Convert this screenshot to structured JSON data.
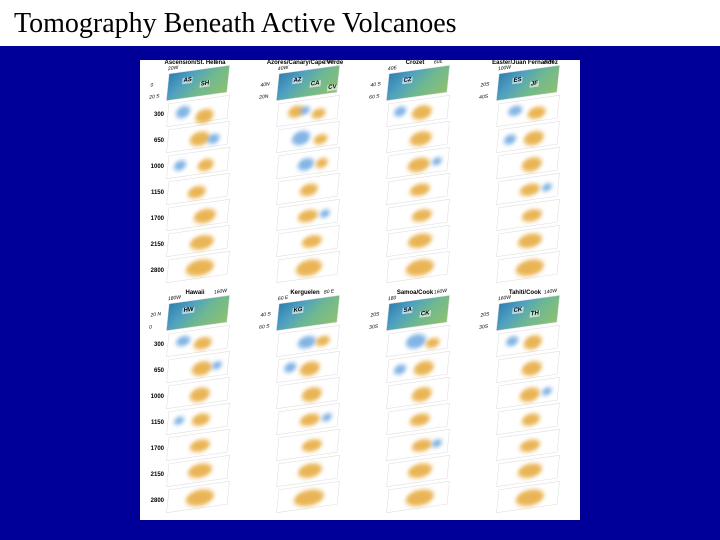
{
  "title": "Tomography Beneath Active Volcanoes",
  "slide_background": "#000099",
  "figure_background": "#ffffff",
  "depths": [
    "300",
    "650",
    "1000",
    "1150",
    "1700",
    "2150",
    "2800"
  ],
  "color_slow": "#e6a838",
  "color_fast": "#6ea8e0",
  "groups": {
    "top": [
      {
        "header": "Ascension/St. Helena",
        "surface_axes": [
          "20W",
          "0",
          "0",
          "20 S"
        ],
        "surface_markers": [
          "AS",
          "SH"
        ],
        "slices": [
          {
            "blobs": [
              [
                "#e6a838",
                28,
                10,
                18,
                14
              ],
              [
                "#6ea8e0",
                8,
                4,
                14,
                12
              ]
            ]
          },
          {
            "blobs": [
              [
                "#e6a838",
                22,
                6,
                20,
                14
              ],
              [
                "#6ea8e0",
                40,
                10,
                12,
                10
              ]
            ]
          },
          {
            "blobs": [
              [
                "#e6a838",
                30,
                8,
                16,
                12
              ],
              [
                "#6ea8e0",
                6,
                6,
                12,
                10
              ]
            ]
          },
          {
            "blobs": [
              [
                "#e6a838",
                20,
                8,
                18,
                12
              ]
            ]
          },
          {
            "blobs": [
              [
                "#e6a838",
                26,
                6,
                22,
                14
              ]
            ]
          },
          {
            "blobs": [
              [
                "#e6a838",
                22,
                6,
                24,
                14
              ]
            ]
          },
          {
            "blobs": [
              [
                "#e6a838",
                18,
                4,
                28,
                16
              ]
            ]
          }
        ]
      },
      {
        "header": "Azores/Canary/Cape Verde",
        "surface_axes": [
          "40W",
          "20W",
          "40N",
          "20N"
        ],
        "surface_markers": [
          "AZ",
          "CA",
          "CV"
        ],
        "slices": [
          {
            "blobs": [
              [
                "#e6a838",
                10,
                4,
                16,
                12
              ],
              [
                "#e6a838",
                34,
                10,
                14,
                10
              ],
              [
                "#6ea8e0",
                22,
                6,
                10,
                8
              ]
            ]
          },
          {
            "blobs": [
              [
                "#6ea8e0",
                14,
                4,
                18,
                14
              ],
              [
                "#e6a838",
                36,
                10,
                14,
                10
              ]
            ]
          },
          {
            "blobs": [
              [
                "#6ea8e0",
                20,
                6,
                16,
                12
              ],
              [
                "#e6a838",
                38,
                8,
                12,
                10
              ]
            ]
          },
          {
            "blobs": [
              [
                "#e6a838",
                22,
                6,
                18,
                12
              ]
            ]
          },
          {
            "blobs": [
              [
                "#e6a838",
                20,
                6,
                20,
                12
              ],
              [
                "#6ea8e0",
                42,
                8,
                10,
                8
              ]
            ]
          },
          {
            "blobs": [
              [
                "#e6a838",
                24,
                6,
                20,
                12
              ]
            ]
          },
          {
            "blobs": [
              [
                "#e6a838",
                18,
                4,
                26,
                16
              ]
            ]
          }
        ]
      },
      {
        "header": "Crozet",
        "surface_axes": [
          "40E",
          "60E",
          "40 S",
          "60 S"
        ],
        "surface_markers": [
          "CZ"
        ],
        "slices": [
          {
            "blobs": [
              [
                "#e6a838",
                24,
                6,
                20,
                14
              ],
              [
                "#6ea8e0",
                6,
                4,
                12,
                10
              ]
            ]
          },
          {
            "blobs": [
              [
                "#e6a838",
                22,
                6,
                22,
                14
              ]
            ]
          },
          {
            "blobs": [
              [
                "#e6a838",
                20,
                6,
                22,
                14
              ],
              [
                "#6ea8e0",
                44,
                8,
                10,
                8
              ]
            ]
          },
          {
            "blobs": [
              [
                "#e6a838",
                22,
                6,
                20,
                12
              ]
            ]
          },
          {
            "blobs": [
              [
                "#e6a838",
                24,
                6,
                20,
                12
              ]
            ]
          },
          {
            "blobs": [
              [
                "#e6a838",
                20,
                4,
                24,
                14
              ]
            ]
          },
          {
            "blobs": [
              [
                "#e6a838",
                18,
                4,
                28,
                16
              ]
            ]
          }
        ]
      },
      {
        "header": "Easter/Juan Fernandez",
        "surface_axes": [
          "100W",
          "80W",
          "20S",
          "40S"
        ],
        "surface_markers": [
          "ES",
          "JF"
        ],
        "slices": [
          {
            "blobs": [
              [
                "#e6a838",
                30,
                8,
                18,
                12
              ],
              [
                "#6ea8e0",
                10,
                4,
                14,
                10
              ]
            ]
          },
          {
            "blobs": [
              [
                "#e6a838",
                26,
                6,
                20,
                14
              ],
              [
                "#6ea8e0",
                6,
                6,
                12,
                10
              ]
            ]
          },
          {
            "blobs": [
              [
                "#e6a838",
                24,
                6,
                20,
                14
              ]
            ]
          },
          {
            "blobs": [
              [
                "#e6a838",
                22,
                6,
                20,
                12
              ],
              [
                "#6ea8e0",
                44,
                8,
                10,
                8
              ]
            ]
          },
          {
            "blobs": [
              [
                "#e6a838",
                24,
                6,
                20,
                12
              ]
            ]
          },
          {
            "blobs": [
              [
                "#e6a838",
                20,
                4,
                24,
                14
              ]
            ]
          },
          {
            "blobs": [
              [
                "#e6a838",
                18,
                4,
                28,
                16
              ]
            ]
          }
        ]
      }
    ],
    "bot": [
      {
        "header": "Hawaii",
        "surface_axes": [
          "180W",
          "160W",
          "20 N",
          "0"
        ],
        "surface_markers": [
          "HW"
        ],
        "slices": [
          {
            "blobs": [
              [
                "#e6a838",
                26,
                8,
                18,
                12
              ],
              [
                "#6ea8e0",
                8,
                4,
                14,
                10
              ]
            ]
          },
          {
            "blobs": [
              [
                "#e6a838",
                24,
                6,
                20,
                14
              ],
              [
                "#6ea8e0",
                44,
                8,
                10,
                8
              ]
            ]
          },
          {
            "blobs": [
              [
                "#e6a838",
                22,
                6,
                20,
                14
              ]
            ]
          },
          {
            "blobs": [
              [
                "#e6a838",
                24,
                6,
                18,
                12
              ],
              [
                "#6ea8e0",
                6,
                6,
                10,
                8
              ]
            ]
          },
          {
            "blobs": [
              [
                "#e6a838",
                22,
                6,
                20,
                12
              ]
            ]
          },
          {
            "blobs": [
              [
                "#e6a838",
                20,
                4,
                24,
                14
              ]
            ]
          },
          {
            "blobs": [
              [
                "#e6a838",
                18,
                4,
                28,
                16
              ]
            ]
          }
        ]
      },
      {
        "header": "Kerguelen",
        "surface_axes": [
          "60 E",
          "80 E",
          "40 S",
          "60 S"
        ],
        "surface_markers": [
          "KG"
        ],
        "slices": [
          {
            "blobs": [
              [
                "#6ea8e0",
                20,
                6,
                18,
                12
              ],
              [
                "#e6a838",
                38,
                8,
                14,
                10
              ]
            ]
          },
          {
            "blobs": [
              [
                "#e6a838",
                22,
                6,
                20,
                14
              ],
              [
                "#6ea8e0",
                6,
                4,
                12,
                10
              ]
            ]
          },
          {
            "blobs": [
              [
                "#e6a838",
                24,
                6,
                20,
                14
              ]
            ]
          },
          {
            "blobs": [
              [
                "#e6a838",
                22,
                6,
                20,
                12
              ],
              [
                "#6ea8e0",
                44,
                8,
                10,
                8
              ]
            ]
          },
          {
            "blobs": [
              [
                "#e6a838",
                24,
                6,
                20,
                12
              ]
            ]
          },
          {
            "blobs": [
              [
                "#e6a838",
                20,
                4,
                24,
                14
              ]
            ]
          },
          {
            "blobs": [
              [
                "#e6a838",
                16,
                4,
                30,
                16
              ]
            ]
          }
        ]
      },
      {
        "header": "Samoa/Cook",
        "surface_axes": [
          "180",
          "160W",
          "20S",
          "30S"
        ],
        "surface_markers": [
          "SA",
          "CK"
        ],
        "slices": [
          {
            "blobs": [
              [
                "#6ea8e0",
                18,
                4,
                20,
                14
              ],
              [
                "#e6a838",
                38,
                10,
                14,
                10
              ]
            ]
          },
          {
            "blobs": [
              [
                "#e6a838",
                26,
                6,
                20,
                14
              ],
              [
                "#6ea8e0",
                6,
                6,
                12,
                10
              ]
            ]
          },
          {
            "blobs": [
              [
                "#e6a838",
                24,
                6,
                20,
                14
              ]
            ]
          },
          {
            "blobs": [
              [
                "#e6a838",
                22,
                6,
                20,
                12
              ]
            ]
          },
          {
            "blobs": [
              [
                "#e6a838",
                24,
                6,
                20,
                12
              ],
              [
                "#6ea8e0",
                44,
                8,
                10,
                8
              ]
            ]
          },
          {
            "blobs": [
              [
                "#e6a838",
                20,
                4,
                24,
                14
              ]
            ]
          },
          {
            "blobs": [
              [
                "#e6a838",
                18,
                4,
                28,
                16
              ]
            ]
          }
        ]
      },
      {
        "header": "Tahiti/Cook",
        "surface_axes": [
          "160W",
          "140W",
          "20S",
          "30S"
        ],
        "surface_markers": [
          "CK",
          "TH"
        ],
        "slices": [
          {
            "blobs": [
              [
                "#e6a838",
                26,
                6,
                18,
                14
              ],
              [
                "#6ea8e0",
                8,
                4,
                12,
                10
              ]
            ]
          },
          {
            "blobs": [
              [
                "#e6a838",
                24,
                6,
                20,
                14
              ]
            ]
          },
          {
            "blobs": [
              [
                "#e6a838",
                22,
                6,
                20,
                14
              ],
              [
                "#6ea8e0",
                44,
                8,
                10,
                8
              ]
            ]
          },
          {
            "blobs": [
              [
                "#e6a838",
                24,
                6,
                18,
                12
              ]
            ]
          },
          {
            "blobs": [
              [
                "#e6a838",
                22,
                6,
                20,
                12
              ]
            ]
          },
          {
            "blobs": [
              [
                "#e6a838",
                20,
                4,
                24,
                14
              ]
            ]
          },
          {
            "blobs": [
              [
                "#e6a838",
                18,
                4,
                28,
                16
              ]
            ]
          }
        ]
      }
    ]
  }
}
